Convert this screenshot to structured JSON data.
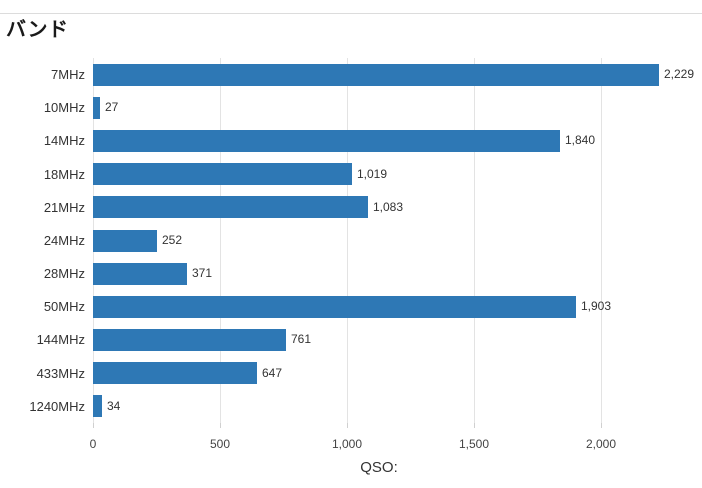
{
  "page": {
    "background_color": "#ffffff",
    "top_border_color": "#dcdcdc"
  },
  "header": {
    "title": "バンド"
  },
  "chart_data": {
    "type": "bar",
    "orientation": "horizontal",
    "title": "バンド",
    "xlabel": "QSO:",
    "ylabel": "",
    "categories": [
      "7MHz",
      "10MHz",
      "14MHz",
      "18MHz",
      "21MHz",
      "24MHz",
      "28MHz",
      "50MHz",
      "144MHz",
      "433MHz",
      "1240MHz"
    ],
    "values": [
      2229,
      27,
      1840,
      1019,
      1083,
      252,
      371,
      1903,
      761,
      647,
      34
    ],
    "value_labels": [
      "2,229",
      "27",
      "1,840",
      "1,019",
      "1,083",
      "252",
      "371",
      "1,903",
      "761",
      "647",
      "34"
    ],
    "x_ticks": [
      0,
      500,
      1000,
      1500,
      2000
    ],
    "x_tick_labels": [
      "0",
      "500",
      "1,000",
      "1,500",
      "2,000"
    ],
    "xlim": [
      0,
      2350
    ],
    "grid": "vertical-only",
    "legend": "none",
    "bar_color": "#2E78B5",
    "gridline_color": "#e3e3e3",
    "text_color": "#333333"
  }
}
